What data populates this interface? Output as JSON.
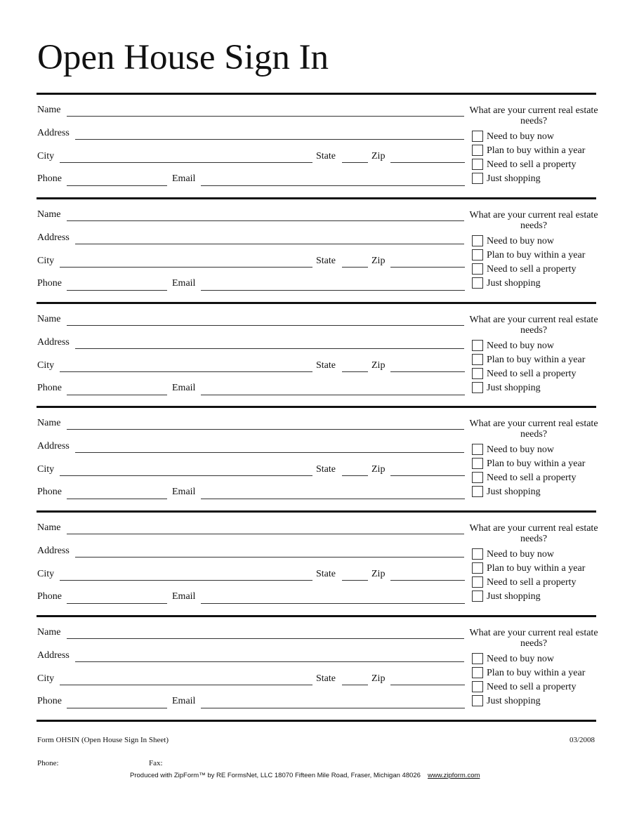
{
  "title": "Open House Sign In",
  "labels": {
    "name": "Name",
    "address": "Address",
    "city": "City",
    "state": "State",
    "zip": "Zip",
    "phone": "Phone",
    "email": "Email"
  },
  "needs_question": "What are your current real estate needs?",
  "needs_options": [
    "Need to buy now",
    "Plan to buy within a year",
    "Need to sell a property",
    "Just shopping"
  ],
  "footer": {
    "form_id": "Form OHSIN (Open House Sign In Sheet)",
    "date": "03/2008",
    "phone_label": "Phone:",
    "fax_label": "Fax:",
    "produced_by": "Produced with ZipForm™ by RE FormsNet, LLC 18070 Fifteen Mile Road, Fraser, Michigan 48026",
    "website": "www.zipform.com"
  }
}
